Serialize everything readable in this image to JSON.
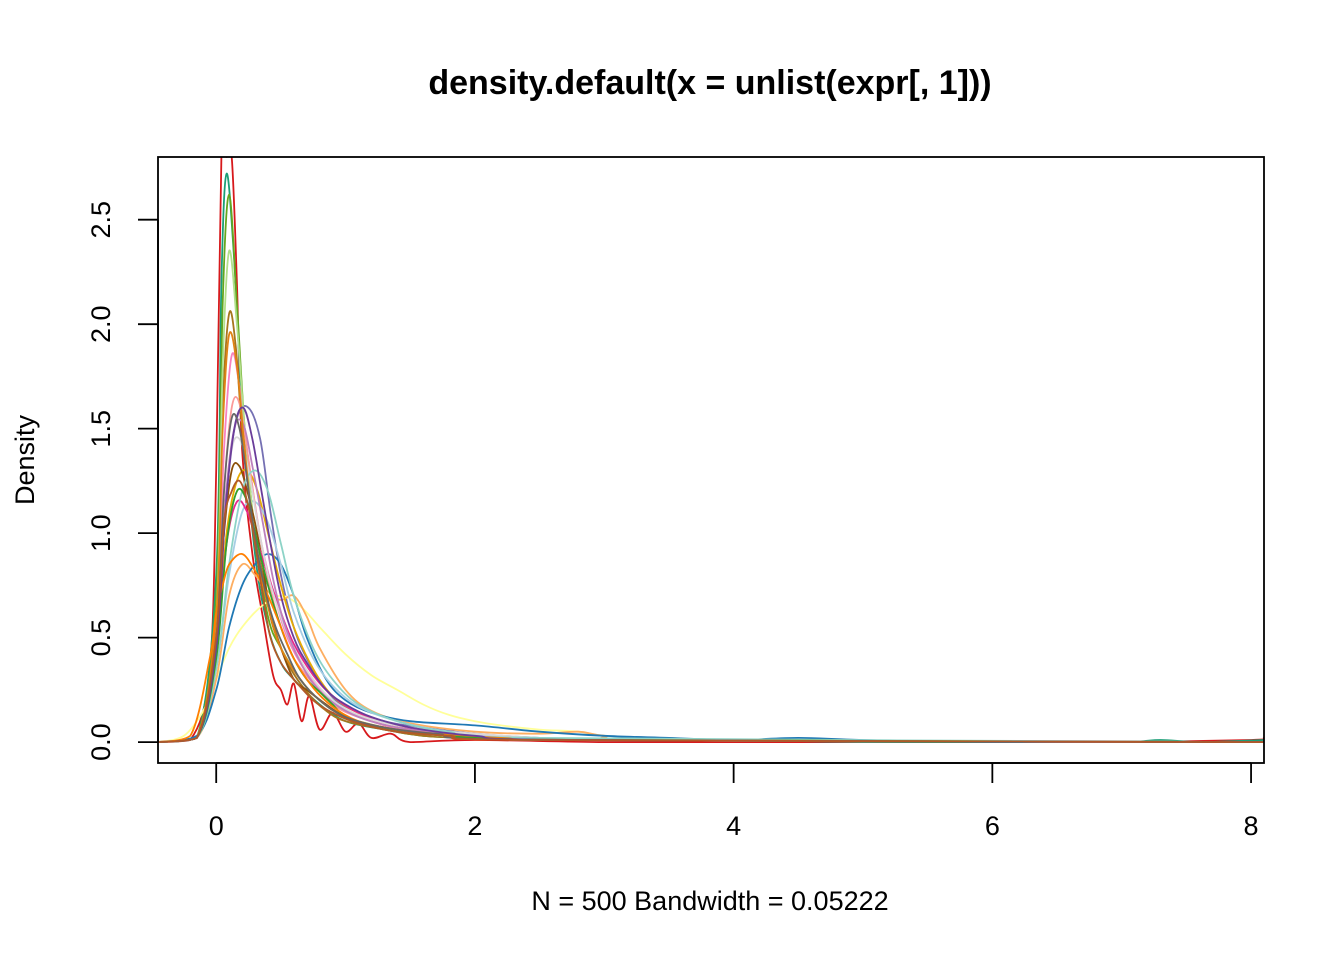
{
  "chart_data": {
    "type": "line",
    "title": "density.default(x = unlist(expr[, 1]))",
    "xlabel": "N = 500   Bandwidth = 0.05222",
    "ylabel": "Density",
    "xlim": [
      -0.45,
      8.1
    ],
    "ylim": [
      -0.1,
      2.8
    ],
    "xticks": [
      0,
      2,
      4,
      6,
      8
    ],
    "xtick_labels": [
      "0",
      "2",
      "4",
      "6",
      "8"
    ],
    "yticks": [
      0.0,
      0.5,
      1.0,
      1.5,
      2.0,
      2.5
    ],
    "ytick_labels": [
      "0.0",
      "0.5",
      "1.0",
      "1.5",
      "2.0",
      "2.5"
    ],
    "grid": false,
    "legend": "none",
    "series": [
      {
        "color": "#D7191C",
        "x": [
          -0.45,
          -0.2,
          -0.05,
          0.0,
          0.04,
          0.08,
          0.12,
          0.16,
          0.2,
          0.28,
          0.36,
          0.44,
          0.5,
          0.55,
          0.6,
          0.66,
          0.72,
          0.8,
          0.9,
          1.0,
          1.1,
          1.2,
          1.35,
          1.5,
          2.0,
          3.0,
          4.0,
          5.0,
          6.0,
          7.0,
          8.0,
          8.1
        ],
        "y": [
          0.0,
          0.01,
          0.35,
          1.3,
          2.8,
          2.8,
          2.8,
          2.2,
          1.4,
          0.9,
          0.6,
          0.32,
          0.25,
          0.18,
          0.28,
          0.1,
          0.22,
          0.06,
          0.14,
          0.05,
          0.09,
          0.02,
          0.04,
          0.0,
          0.01,
          0.0,
          0.0,
          0.0,
          0.0,
          0.0,
          0.01,
          0.02
        ]
      },
      {
        "color": "#1B9E77",
        "x": [
          -0.45,
          -0.15,
          0.0,
          0.04,
          0.08,
          0.14,
          0.2,
          0.3,
          0.4,
          0.5,
          0.6,
          0.8,
          1.0,
          1.3,
          1.6,
          2.0,
          3.0,
          4.0,
          5.0,
          6.0,
          7.0,
          7.3,
          7.6,
          8.1
        ],
        "y": [
          0.0,
          0.02,
          0.8,
          2.2,
          2.72,
          2.3,
          1.6,
          0.9,
          0.55,
          0.38,
          0.3,
          0.18,
          0.1,
          0.06,
          0.03,
          0.02,
          0.01,
          0.01,
          0.0,
          0.0,
          0.0,
          0.01,
          0.0,
          0.01
        ]
      },
      {
        "color": "#66A61E",
        "x": [
          -0.45,
          -0.15,
          0.0,
          0.05,
          0.1,
          0.16,
          0.22,
          0.3,
          0.4,
          0.5,
          0.65,
          0.8,
          1.0,
          1.3,
          1.6,
          2.0,
          3.0,
          8.1
        ],
        "y": [
          0.0,
          0.02,
          0.7,
          2.1,
          2.62,
          2.1,
          1.5,
          1.0,
          0.6,
          0.45,
          0.3,
          0.2,
          0.12,
          0.07,
          0.04,
          0.02,
          0.01,
          0.0
        ]
      },
      {
        "color": "#7570B3",
        "x": [
          -0.45,
          -0.15,
          0.0,
          0.08,
          0.16,
          0.25,
          0.34,
          0.42,
          0.5,
          0.6,
          0.7,
          0.85,
          1.0,
          1.3,
          1.6,
          2.0,
          2.5,
          3.0,
          8.1
        ],
        "y": [
          0.0,
          0.02,
          0.45,
          1.2,
          1.55,
          1.6,
          1.45,
          1.1,
          0.8,
          0.55,
          0.4,
          0.25,
          0.17,
          0.1,
          0.07,
          0.04,
          0.02,
          0.01,
          0.0
        ]
      },
      {
        "color": "#FFFF99",
        "x": [
          -0.45,
          -0.25,
          -0.1,
          0.0,
          0.1,
          0.2,
          0.35,
          0.5,
          0.65,
          0.8,
          1.0,
          1.2,
          1.4,
          1.6,
          1.8,
          2.0,
          2.2,
          2.5,
          2.8,
          3.0,
          3.5,
          8.1
        ],
        "y": [
          0.0,
          0.03,
          0.15,
          0.3,
          0.45,
          0.55,
          0.65,
          0.7,
          0.65,
          0.55,
          0.42,
          0.32,
          0.25,
          0.18,
          0.13,
          0.1,
          0.08,
          0.06,
          0.05,
          0.03,
          0.01,
          0.0
        ]
      },
      {
        "color": "#FDAE61",
        "x": [
          -0.45,
          -0.15,
          0.0,
          0.1,
          0.2,
          0.3,
          0.4,
          0.5,
          0.6,
          0.7,
          0.8,
          1.0,
          1.2,
          1.5,
          2.0,
          2.5,
          2.8,
          3.0,
          3.5,
          8.1
        ],
        "y": [
          0.0,
          0.02,
          0.3,
          0.7,
          0.85,
          0.8,
          0.72,
          0.68,
          0.7,
          0.6,
          0.45,
          0.25,
          0.15,
          0.09,
          0.05,
          0.04,
          0.05,
          0.03,
          0.01,
          0.0
        ]
      },
      {
        "color": "#A6761D",
        "x": [
          -0.45,
          -0.15,
          0.0,
          0.05,
          0.1,
          0.15,
          0.2,
          0.28,
          0.36,
          0.45,
          0.55,
          0.7,
          0.85,
          1.0,
          1.3,
          1.6,
          2.0,
          3.0,
          8.1
        ],
        "y": [
          0.0,
          0.02,
          0.6,
          1.6,
          2.05,
          1.9,
          1.5,
          1.1,
          0.8,
          0.55,
          0.38,
          0.24,
          0.15,
          0.1,
          0.06,
          0.03,
          0.02,
          0.01,
          0.0
        ]
      },
      {
        "color": "#F781BF",
        "x": [
          -0.45,
          -0.15,
          0.0,
          0.06,
          0.12,
          0.18,
          0.25,
          0.35,
          0.45,
          0.55,
          0.7,
          0.85,
          1.0,
          1.3,
          1.6,
          2.0,
          3.0,
          8.1
        ],
        "y": [
          0.0,
          0.02,
          0.55,
          1.4,
          1.85,
          1.7,
          1.35,
          0.95,
          0.7,
          0.5,
          0.33,
          0.22,
          0.15,
          0.08,
          0.05,
          0.03,
          0.01,
          0.0
        ]
      },
      {
        "color": "#1F78B4",
        "x": [
          -0.45,
          -0.15,
          0.0,
          0.1,
          0.2,
          0.3,
          0.4,
          0.5,
          0.6,
          0.7,
          0.85,
          1.0,
          1.2,
          1.5,
          2.0,
          2.5,
          3.0,
          3.5,
          4.0,
          4.5,
          5.0,
          6.0,
          8.1
        ],
        "y": [
          0.0,
          0.03,
          0.25,
          0.55,
          0.75,
          0.85,
          0.9,
          0.85,
          0.7,
          0.5,
          0.3,
          0.2,
          0.14,
          0.1,
          0.08,
          0.05,
          0.03,
          0.02,
          0.01,
          0.02,
          0.01,
          0.0,
          0.0
        ]
      },
      {
        "color": "#E6AB02",
        "x": [
          -0.45,
          -0.15,
          0.0,
          0.08,
          0.16,
          0.24,
          0.32,
          0.4,
          0.5,
          0.6,
          0.75,
          0.9,
          1.1,
          1.4,
          1.8,
          2.2,
          3.0,
          8.1
        ],
        "y": [
          0.0,
          0.02,
          0.45,
          1.0,
          1.25,
          1.3,
          1.2,
          1.0,
          0.75,
          0.55,
          0.35,
          0.22,
          0.14,
          0.08,
          0.04,
          0.02,
          0.01,
          0.0
        ]
      },
      {
        "color": "#A6CEE3",
        "x": [
          -0.45,
          -0.15,
          0.0,
          0.1,
          0.2,
          0.3,
          0.4,
          0.5,
          0.6,
          0.75,
          0.9,
          1.1,
          1.4,
          1.8,
          2.2,
          3.0,
          8.1
        ],
        "y": [
          0.0,
          0.02,
          0.35,
          0.8,
          1.1,
          1.15,
          1.05,
          0.85,
          0.62,
          0.4,
          0.27,
          0.17,
          0.1,
          0.05,
          0.03,
          0.01,
          0.0
        ]
      },
      {
        "color": "#B2DF8A",
        "x": [
          -0.45,
          -0.15,
          0.0,
          0.05,
          0.1,
          0.16,
          0.22,
          0.3,
          0.4,
          0.5,
          0.65,
          0.8,
          1.0,
          1.3,
          1.6,
          2.0,
          3.0,
          8.1
        ],
        "y": [
          0.0,
          0.02,
          0.6,
          1.8,
          2.35,
          2.0,
          1.5,
          1.0,
          0.65,
          0.45,
          0.3,
          0.2,
          0.12,
          0.07,
          0.04,
          0.02,
          0.01,
          0.0
        ]
      },
      {
        "color": "#8C510A",
        "x": [
          -0.45,
          -0.15,
          0.0,
          0.06,
          0.12,
          0.18,
          0.24,
          0.3,
          0.36,
          0.42,
          0.5,
          0.6,
          0.7,
          0.85,
          1.0,
          1.2,
          1.5,
          2.0,
          3.0,
          8.1
        ],
        "y": [
          0.0,
          0.02,
          0.5,
          1.0,
          1.3,
          1.32,
          1.2,
          1.05,
          0.85,
          0.6,
          0.45,
          0.3,
          0.25,
          0.18,
          0.12,
          0.08,
          0.05,
          0.02,
          0.01,
          0.0
        ]
      },
      {
        "color": "#FB9A99",
        "x": [
          -0.45,
          -0.15,
          0.0,
          0.06,
          0.12,
          0.18,
          0.25,
          0.32,
          0.4,
          0.5,
          0.6,
          0.75,
          0.9,
          1.1,
          1.4,
          1.8,
          2.5,
          8.1
        ],
        "y": [
          0.0,
          0.02,
          0.5,
          1.2,
          1.6,
          1.62,
          1.35,
          1.05,
          0.78,
          0.55,
          0.4,
          0.28,
          0.18,
          0.12,
          0.07,
          0.04,
          0.01,
          0.0
        ]
      },
      {
        "color": "#E7298A",
        "x": [
          -0.45,
          -0.15,
          0.0,
          0.08,
          0.16,
          0.24,
          0.32,
          0.4,
          0.5,
          0.6,
          0.75,
          0.9,
          1.1,
          1.4,
          1.8,
          2.5,
          8.1
        ],
        "y": [
          0.0,
          0.02,
          0.45,
          0.95,
          1.15,
          1.1,
          0.95,
          0.8,
          0.62,
          0.47,
          0.32,
          0.22,
          0.14,
          0.08,
          0.04,
          0.01,
          0.0
        ]
      },
      {
        "color": "#D9D9D9",
        "x": [
          -0.45,
          -0.15,
          0.0,
          0.06,
          0.12,
          0.18,
          0.25,
          0.32,
          0.4,
          0.5,
          0.6,
          0.75,
          0.9,
          1.1,
          1.4,
          1.8,
          2.5,
          3.0,
          8.1
        ],
        "y": [
          0.0,
          0.02,
          0.5,
          1.05,
          1.4,
          1.45,
          1.3,
          1.05,
          0.8,
          0.6,
          0.45,
          0.3,
          0.2,
          0.13,
          0.08,
          0.05,
          0.02,
          0.01,
          0.0
        ]
      },
      {
        "color": "#BC80BD",
        "x": [
          -0.45,
          -0.15,
          0.0,
          0.07,
          0.14,
          0.21,
          0.28,
          0.36,
          0.44,
          0.52,
          0.62,
          0.75,
          0.9,
          1.1,
          1.4,
          1.8,
          2.5,
          8.1
        ],
        "y": [
          0.0,
          0.02,
          0.5,
          1.15,
          1.5,
          1.52,
          1.32,
          1.05,
          0.78,
          0.58,
          0.42,
          0.28,
          0.19,
          0.12,
          0.07,
          0.04,
          0.01,
          0.0
        ]
      },
      {
        "color": "#8DD3C7",
        "x": [
          -0.45,
          -0.15,
          0.0,
          0.1,
          0.2,
          0.3,
          0.4,
          0.5,
          0.6,
          0.75,
          0.9,
          1.1,
          1.4,
          1.8,
          2.5,
          8.1
        ],
        "y": [
          0.0,
          0.02,
          0.35,
          0.85,
          1.2,
          1.3,
          1.2,
          0.95,
          0.7,
          0.45,
          0.3,
          0.18,
          0.1,
          0.05,
          0.02,
          0.0
        ]
      },
      {
        "color": "#E08214",
        "x": [
          -0.45,
          -0.15,
          0.0,
          0.05,
          0.1,
          0.16,
          0.22,
          0.3,
          0.4,
          0.5,
          0.65,
          0.8,
          1.0,
          1.3,
          1.7,
          2.2,
          3.0,
          8.1
        ],
        "y": [
          0.0,
          0.02,
          0.6,
          1.5,
          1.95,
          1.8,
          1.4,
          0.95,
          0.65,
          0.45,
          0.3,
          0.2,
          0.12,
          0.07,
          0.04,
          0.02,
          0.01,
          0.0
        ]
      },
      {
        "color": "#33A02C",
        "x": [
          -0.45,
          -0.15,
          0.0,
          0.08,
          0.16,
          0.24,
          0.32,
          0.4,
          0.5,
          0.6,
          0.7,
          0.8,
          0.9,
          1.0,
          1.2,
          1.5,
          2.0,
          3.0,
          8.1
        ],
        "y": [
          0.0,
          0.02,
          0.4,
          0.95,
          1.2,
          1.15,
          0.95,
          0.75,
          0.55,
          0.4,
          0.3,
          0.24,
          0.18,
          0.12,
          0.08,
          0.05,
          0.02,
          0.01,
          0.0
        ]
      },
      {
        "color": "#FF7F00",
        "x": [
          -0.45,
          -0.2,
          -0.05,
          0.0,
          0.05,
          0.1,
          0.2,
          0.3,
          0.4,
          0.5,
          0.6,
          0.75,
          0.9,
          1.1,
          1.4,
          1.8,
          2.5,
          8.1
        ],
        "y": [
          0.0,
          0.03,
          0.4,
          0.62,
          0.75,
          0.85,
          0.9,
          0.82,
          0.7,
          0.55,
          0.4,
          0.26,
          0.17,
          0.1,
          0.06,
          0.03,
          0.01,
          0.0
        ]
      },
      {
        "color": "#6A3D9A",
        "x": [
          -0.45,
          -0.15,
          0.0,
          0.07,
          0.14,
          0.21,
          0.28,
          0.35,
          0.42,
          0.5,
          0.6,
          0.7,
          0.85,
          1.0,
          1.2,
          1.5,
          2.0,
          2.8,
          8.1
        ],
        "y": [
          0.0,
          0.02,
          0.45,
          1.1,
          1.5,
          1.6,
          1.45,
          1.2,
          0.95,
          0.7,
          0.5,
          0.38,
          0.25,
          0.18,
          0.12,
          0.07,
          0.03,
          0.01,
          0.0
        ]
      },
      {
        "color": "#666666",
        "x": [
          -0.45,
          -0.15,
          0.0,
          0.06,
          0.12,
          0.18,
          0.24,
          0.3,
          0.38,
          0.46,
          0.55,
          0.65,
          0.8,
          1.0,
          1.3,
          1.7,
          2.5,
          8.1
        ],
        "y": [
          0.0,
          0.02,
          0.5,
          1.2,
          1.55,
          1.5,
          1.25,
          0.98,
          0.72,
          0.55,
          0.42,
          0.3,
          0.2,
          0.12,
          0.07,
          0.04,
          0.01,
          0.0
        ]
      },
      {
        "color": "#B15928",
        "x": [
          -0.45,
          -0.15,
          0.0,
          0.06,
          0.12,
          0.18,
          0.24,
          0.3,
          0.36,
          0.42,
          0.5,
          0.6,
          0.75,
          0.9,
          1.1,
          1.4,
          1.8,
          2.5,
          8.1
        ],
        "y": [
          0.0,
          0.02,
          0.5,
          1.05,
          1.2,
          1.25,
          1.15,
          0.95,
          0.7,
          0.5,
          0.38,
          0.3,
          0.2,
          0.14,
          0.09,
          0.05,
          0.03,
          0.01,
          0.0
        ]
      }
    ]
  }
}
